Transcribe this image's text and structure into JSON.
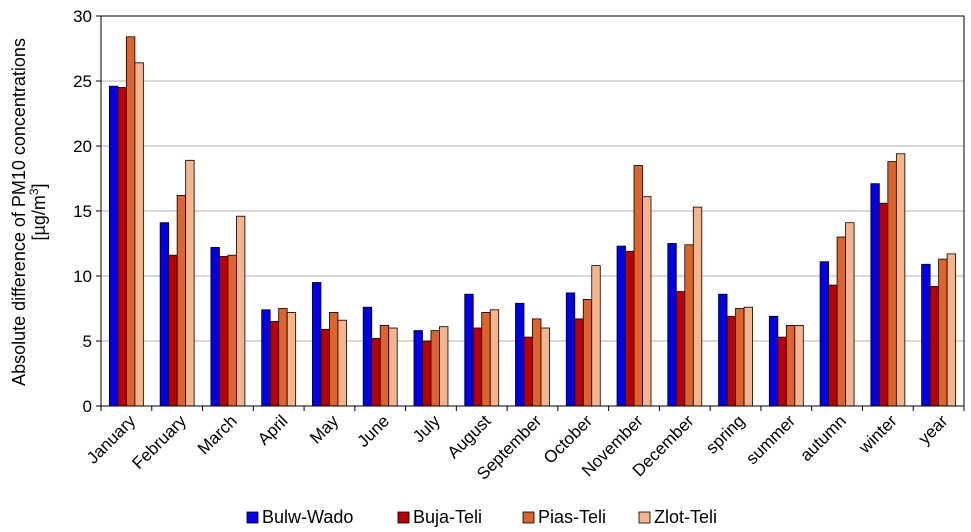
{
  "chart_data": {
    "type": "bar",
    "title": "",
    "xlabel": "",
    "ylabel_line1": "Absolute difference of PM10 concentrations",
    "ylabel_line2_prefix": "[µg/m",
    "ylabel_line2_sup": "3",
    "ylabel_line2_suffix": "]",
    "ylim": [
      0,
      30
    ],
    "yticks": [
      0,
      5,
      10,
      15,
      20,
      25,
      30
    ],
    "grid": true,
    "legend_position": "bottom",
    "categories": [
      "January",
      "February",
      "March",
      "April",
      "May",
      "June",
      "July",
      "August",
      "September",
      "October",
      "November",
      "December",
      "spring",
      "summer",
      "autumn",
      "winter",
      "year"
    ],
    "series": [
      {
        "name": "Bulw-Wado",
        "color": "#0000ee",
        "values": [
          24.6,
          14.1,
          12.2,
          7.4,
          9.5,
          7.6,
          5.8,
          8.6,
          7.9,
          8.7,
          12.3,
          12.5,
          8.6,
          6.9,
          11.1,
          17.1,
          10.9
        ]
      },
      {
        "name": "Buja-Teli",
        "color": "#bb0000",
        "values": [
          24.5,
          11.6,
          11.5,
          6.5,
          5.9,
          5.2,
          5.0,
          6.0,
          5.3,
          6.7,
          11.9,
          8.8,
          6.9,
          5.3,
          9.3,
          15.6,
          9.2
        ]
      },
      {
        "name": "Pias-Teli",
        "color": "#e0642a",
        "values": [
          28.4,
          16.2,
          11.6,
          7.5,
          7.2,
          6.2,
          5.8,
          7.2,
          6.7,
          8.2,
          18.5,
          12.4,
          7.5,
          6.2,
          13.0,
          18.8,
          11.3
        ]
      },
      {
        "name": "Zlot-Teli",
        "color": "#f5b48c",
        "values": [
          26.4,
          18.9,
          14.6,
          7.2,
          6.6,
          6.0,
          6.1,
          7.4,
          6.0,
          10.8,
          16.1,
          15.3,
          7.6,
          6.2,
          14.1,
          19.4,
          11.7
        ]
      }
    ]
  }
}
